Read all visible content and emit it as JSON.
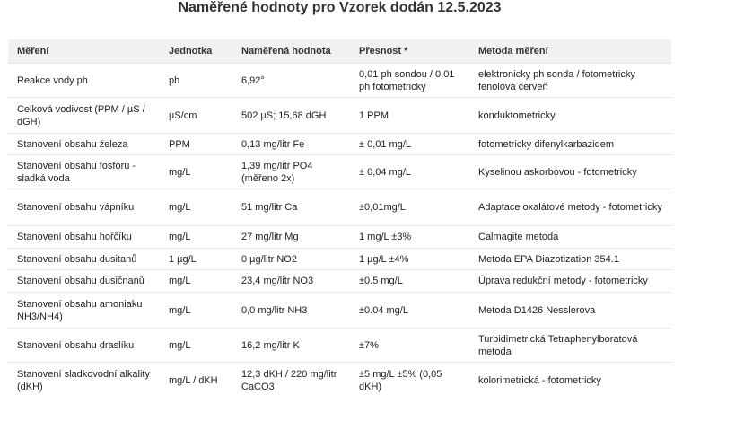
{
  "header": {
    "title": "Naměřené hodnoty pro Vzorek dodán 12.5.2023"
  },
  "table": {
    "columns": [
      "Měření",
      "Jednotka",
      "Naměřená hodnota",
      "Přesnost *",
      "Metoda měření"
    ],
    "rows": [
      [
        "Reakce vody ph",
        "ph",
        "6,92°",
        "0,01 ph sondou / 0,01 ph fotometricky",
        "elektronicky ph sonda / fotometricky fenolová červeň"
      ],
      [
        "Celková vodivost (PPM / µS / dGH)",
        "µS/cm",
        "502 µS; 15,68 dGH",
        "1 PPM",
        "konduktometricky"
      ],
      [
        "Stanovení obsahu železa",
        "PPM",
        "0,13 mg/litr Fe",
        "± 0,01 mg/L",
        "fotometricky difenylkarbazidem"
      ],
      [
        "Stanovení obsahu fosforu - sladká voda",
        "mg/L",
        "1,39 mg/litr PO4 (měřeno 2x)",
        "± 0,04 mg/L",
        "Kyselinou askorbovou - fotometricky"
      ],
      [
        "Stanovení obsahu vápníku",
        "mg/L",
        "51 mg/litr Ca",
        "±0,01mg/L",
        "Adaptace oxalátové metody - fotometricky"
      ],
      [
        "Stanovení obsahu hořčíku",
        "mg/L",
        "27 mg/litr Mg",
        "1 mg/L ±3%",
        "Calmagite metoda"
      ],
      [
        "Stanovení obsahu dusitanů",
        "1 µg/L",
        "0 µg/litr NO2",
        "1 µg/L ±4%",
        "Metoda EPA Diazotization 354.1"
      ],
      [
        "Stanovení obsahu dusičnanů",
        "mg/L",
        "23,4 mg/litr NO3",
        "±0.5 mg/L",
        "Úprava redukční metody - fotometricky"
      ],
      [
        "Stanovení obsahu amoniaku NH3/NH4)",
        "mg/L",
        "0,0 mg/litr NH3",
        "±0.04 mg/L",
        "Metoda D1426 Nesslerova"
      ],
      [
        "Stanovení obsahu draslíku",
        "mg/L",
        "16,2 mg/litr K",
        "±7%",
        "Turbidimetrická Tetraphenylboratová metoda"
      ],
      [
        "Stanovení sladkovodní alkality (dKH)",
        "mg/L / dKH",
        "12,3 dKH / 220 mg/litr CaCO3",
        "±5 mg/L ±5% (0,05 dKH)",
        "kolorimetrická - fotometricky"
      ]
    ]
  }
}
